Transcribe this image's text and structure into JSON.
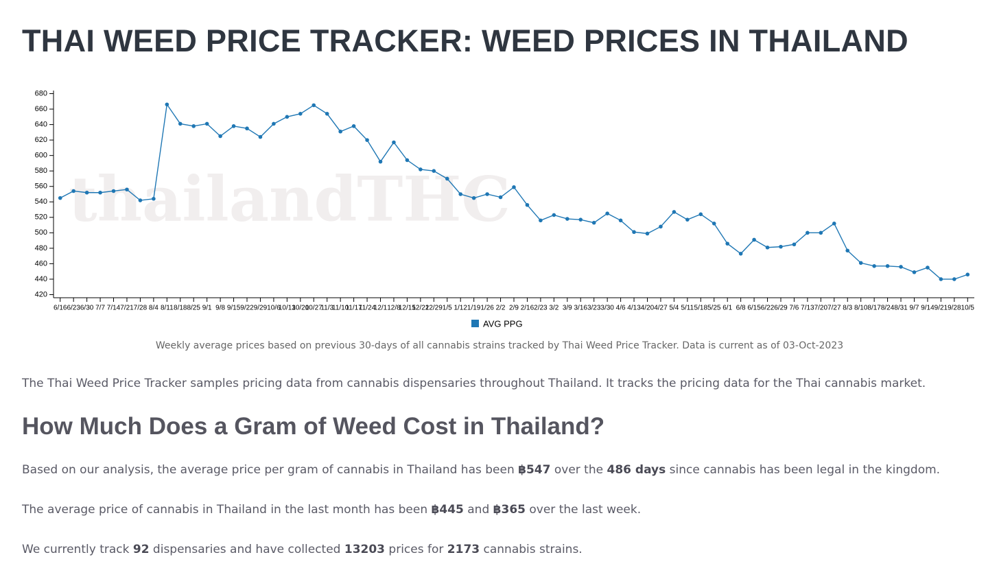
{
  "header": {
    "title": "THAI WEED PRICE TRACKER: WEED PRICES IN THAILAND"
  },
  "chart_data": {
    "type": "line",
    "watermark": "thailandTHC",
    "categories": [
      "6/16",
      "6/23",
      "6/30",
      "7/7",
      "7/14",
      "7/21",
      "7/28",
      "8/4",
      "8/11",
      "8/18",
      "8/25",
      "9/1",
      "9/8",
      "9/15",
      "9/22",
      "9/29",
      "10/6",
      "10/13",
      "10/20",
      "10/27",
      "11/3",
      "11/10",
      "11/17",
      "11/24",
      "12/1",
      "12/8",
      "12/15",
      "12/22",
      "12/29",
      "1/5",
      "1/12",
      "1/19",
      "1/26",
      "2/2",
      "2/9",
      "2/16",
      "2/23",
      "3/2",
      "3/9",
      "3/16",
      "3/23",
      "3/30",
      "4/6",
      "4/13",
      "4/20",
      "4/27",
      "5/4",
      "5/11",
      "5/18",
      "5/25",
      "6/1",
      "6/8",
      "6/15",
      "6/22",
      "6/29",
      "7/6",
      "7/13",
      "7/20",
      "7/27",
      "8/3",
      "8/10",
      "8/17",
      "8/24",
      "8/31",
      "9/7",
      "9/14",
      "9/21",
      "9/28",
      "10/5"
    ],
    "series": [
      {
        "name": "AVG PPG",
        "color": "#1f77b4",
        "values": [
          545,
          554,
          552,
          552,
          554,
          556,
          542,
          544,
          666,
          641,
          638,
          641,
          625,
          638,
          635,
          624,
          641,
          650,
          654,
          665,
          654,
          631,
          638,
          620,
          592,
          617,
          594,
          582,
          580,
          570,
          550,
          545,
          550,
          546,
          559,
          536,
          516,
          523,
          518,
          517,
          513,
          525,
          516,
          501,
          499,
          508,
          527,
          517,
          524,
          512,
          486,
          473,
          491,
          481,
          482,
          485,
          500,
          500,
          512,
          477,
          461,
          457,
          457,
          456,
          449,
          455,
          440,
          440,
          446
        ]
      }
    ],
    "ylim": [
      416,
      684
    ],
    "yticks": [
      420,
      440,
      460,
      480,
      500,
      520,
      540,
      560,
      580,
      600,
      620,
      640,
      660,
      680
    ],
    "legend": "bottom",
    "caption": "Weekly average prices based on previous 30-days of all cannabis strains tracked by Thai Weed Price Tracker. Data is current as of 03-Oct-2023"
  },
  "body": {
    "intro": "The Thai Weed Price Tracker samples pricing data from cannabis dispensaries throughout Thailand. It tracks the pricing data for the Thai cannabis market.",
    "heading": "How Much Does a Gram of Weed Cost in Thailand?",
    "p1": [
      "Based on our analysis, the average price per gram of cannabis in Thailand has been ",
      "฿547",
      " over the ",
      "486 days",
      " since cannabis has been legal in the kingdom."
    ],
    "p2": [
      "The average price of cannabis in Thailand in the last month has been ",
      "฿445",
      " and ",
      "฿365",
      " over the last week."
    ],
    "p3": [
      "We currently track ",
      "92",
      " dispensaries and have collected ",
      "13203",
      " prices for ",
      "2173",
      " cannabis strains."
    ]
  }
}
